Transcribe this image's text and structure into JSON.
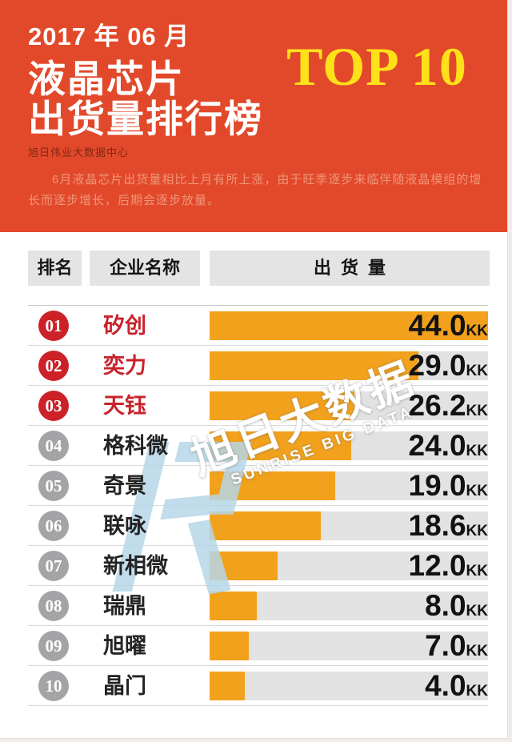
{
  "header": {
    "date_line": "2017 年 06 月",
    "title_line1": "液晶芯片",
    "title_line2": "出货量排行榜",
    "badge": "TOP 10",
    "badge_color": "#FFE11A",
    "bg_color": "#E2492B",
    "source": "旭日伟业大数据中心",
    "description": "6月液晶芯片出货量相比上月有所上涨，由于旺季逐步来临伴随液晶模组的增长而逐步增长，后期会逐步放量。"
  },
  "table": {
    "columns": [
      "排名",
      "企业名称",
      "出货量"
    ]
  },
  "ranking": {
    "unit": "KK",
    "rows": [
      {
        "rank": "01",
        "company": "矽创",
        "value": "44.0",
        "bar_pct": 100,
        "highlight": true
      },
      {
        "rank": "02",
        "company": "奕力",
        "value": "29.0",
        "bar_pct": 75,
        "highlight": true
      },
      {
        "rank": "03",
        "company": "天钰",
        "value": "26.2",
        "bar_pct": 52,
        "highlight": true
      },
      {
        "rank": "04",
        "company": "格科微",
        "value": "24.0",
        "bar_pct": 51,
        "highlight": false
      },
      {
        "rank": "05",
        "company": "奇景",
        "value": "19.0",
        "bar_pct": 45,
        "highlight": false
      },
      {
        "rank": "06",
        "company": "联咏",
        "value": "18.6",
        "bar_pct": 40,
        "highlight": false
      },
      {
        "rank": "07",
        "company": "新相微",
        "value": "12.0",
        "bar_pct": 24.5,
        "highlight": false
      },
      {
        "rank": "08",
        "company": "瑞鼎",
        "value": "8.0",
        "bar_pct": 17,
        "highlight": false
      },
      {
        "rank": "09",
        "company": "旭曜",
        "value": "7.0",
        "bar_pct": 14,
        "highlight": false
      },
      {
        "rank": "10",
        "company": "晶门",
        "value": "4.0",
        "bar_pct": 12.5,
        "highlight": false
      }
    ]
  },
  "watermark": {
    "logo": "sunrise-big-data-logo",
    "text_cn": "旭日大数据",
    "text_en": "SUNRISE BIG DATA"
  },
  "chart_data": {
    "type": "bar",
    "orientation": "horizontal",
    "title": "2017年06月 液晶芯片出货量排行榜 TOP 10",
    "subtitle": "6月液晶芯片出货量相比上月有所上涨，由于旺季逐步来临伴随液晶模组的增长而逐步增长，后期会逐步放量。",
    "categories": [
      "矽创",
      "奕力",
      "天钰",
      "格科微",
      "奇景",
      "联咏",
      "新相微",
      "瑞鼎",
      "旭曜",
      "晶门"
    ],
    "values": [
      44.0,
      29.0,
      26.2,
      24.0,
      19.0,
      18.6,
      12.0,
      8.0,
      7.0,
      4.0
    ],
    "value_labels": [
      "44.0KK",
      "29.0KK",
      "26.2KK",
      "24.0KK",
      "19.0KK",
      "18.6KK",
      "12.0KK",
      "8.0KK",
      "7.0KK",
      "4.0KK"
    ],
    "unit": "KK",
    "xlim": [
      0,
      44
    ],
    "grid": false,
    "legend": "none",
    "bar_color": "#F2A11C",
    "track_color": "#E2E2E2"
  }
}
